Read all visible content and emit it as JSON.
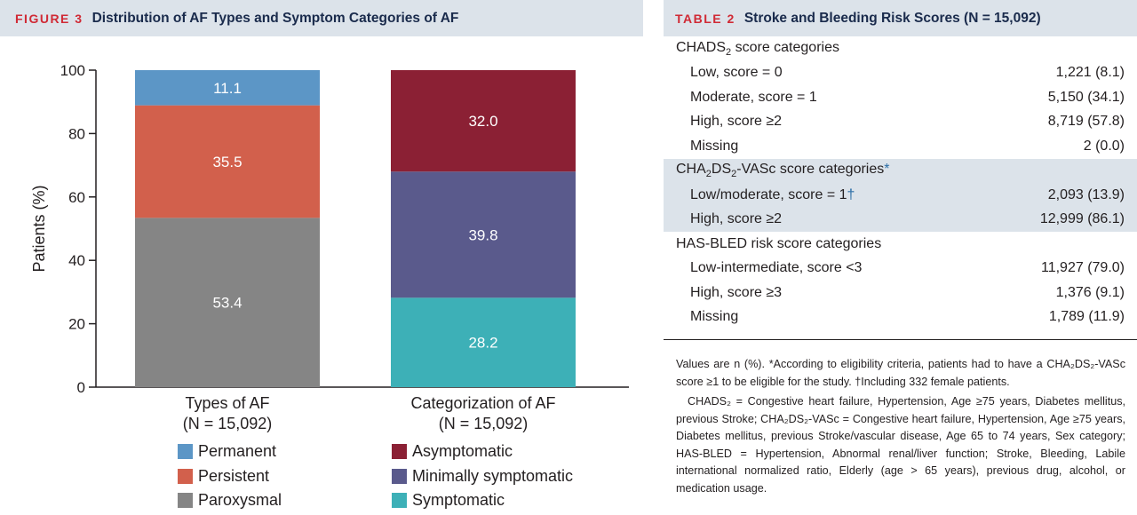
{
  "figure": {
    "tag": "FIGURE 3",
    "title": "Distribution of AF Types and Symptom Categories of AF"
  },
  "chart_data": {
    "type": "bar",
    "stacked": true,
    "ylabel": "Patients (%)",
    "ylim": [
      0,
      100
    ],
    "yticks": [
      0,
      20,
      40,
      60,
      80,
      100
    ],
    "bars": [
      {
        "label_line1": "Types of AF",
        "label_line2": "(N = 15,092)",
        "segments": [
          {
            "name": "Paroxysmal",
            "value": 53.4,
            "color": "#858585"
          },
          {
            "name": "Persistent",
            "value": 35.5,
            "color": "#d2604c"
          },
          {
            "name": "Permanent",
            "value": 11.1,
            "color": "#5c96c6"
          }
        ]
      },
      {
        "label_line1": "Categorization of AF",
        "label_line2": "(N = 15,092)",
        "segments": [
          {
            "name": "Symptomatic",
            "value": 28.2,
            "color": "#3db0b7"
          },
          {
            "name": "Minimally symptomatic",
            "value": 39.8,
            "color": "#5a5a8c"
          },
          {
            "name": "Asymptomatic",
            "value": 32.0,
            "color": "#8b2034"
          }
        ]
      }
    ],
    "legend": {
      "left": [
        {
          "name": "Permanent",
          "color": "#5c96c6"
        },
        {
          "name": "Persistent",
          "color": "#d2604c"
        },
        {
          "name": "Paroxysmal",
          "color": "#858585"
        }
      ],
      "right": [
        {
          "name": "Asymptomatic",
          "color": "#8b2034"
        },
        {
          "name": "Minimally symptomatic",
          "color": "#5a5a8c"
        },
        {
          "name": "Symptomatic",
          "color": "#3db0b7"
        }
      ]
    }
  },
  "table": {
    "tag": "TABLE 2",
    "title": "Stroke and Bleeding Risk Scores (N = 15,092)",
    "sections": [
      {
        "heading_pre": "CHADS",
        "heading_sub": "2",
        "heading_post": " score categories",
        "shaded": false,
        "rows": [
          {
            "label": "Low, score = 0",
            "value": "1,221 (8.1)"
          },
          {
            "label": "Moderate, score = 1",
            "value": "5,150 (34.1)"
          },
          {
            "label": "High, score ≥2",
            "value": "8,719 (57.8)"
          },
          {
            "label": "Missing",
            "value": "2 (0.0)"
          }
        ]
      },
      {
        "heading_pre": "CHA",
        "heading_sub": "2",
        "heading_mid": "DS",
        "heading_sub2": "2",
        "heading_post": "-VASc score categories",
        "heading_mark": "*",
        "shaded": true,
        "rows": [
          {
            "label": "Low/moderate, score = 1",
            "mark": "†",
            "value": "2,093 (13.9)"
          },
          {
            "label": "High, score ≥2",
            "value": "12,999 (86.1)"
          }
        ]
      },
      {
        "heading_pre": "HAS-BLED risk score categories",
        "shaded": false,
        "rows": [
          {
            "label": "Low-intermediate, score <3",
            "value": "11,927 (79.0)"
          },
          {
            "label": "High, score ≥3",
            "value": "1,376 (9.1)"
          },
          {
            "label": "Missing",
            "value": "1,789 (11.9)"
          }
        ]
      }
    ],
    "footnote1": "Values are n (%). *According to eligibility criteria, patients had to have a CHA₂DS₂-VASc score ≥1 to be eligible for the study. †Including 332 female patients.",
    "footnote2": "CHADS₂ = Congestive heart failure, Hypertension, Age ≥75 years, Diabetes mellitus, previous Stroke; CHA₂DS₂-VASc = Congestive heart failure, Hypertension, Age ≥75 years, Diabetes mellitus, previous Stroke/vascular disease, Age 65 to 74 years, Sex category; HAS-BLED = Hypertension, Abnormal renal/liver function; Stroke, Bleeding, Labile international normalized ratio, Elderly (age > 65 years), previous drug, alcohol, or medication usage."
  }
}
